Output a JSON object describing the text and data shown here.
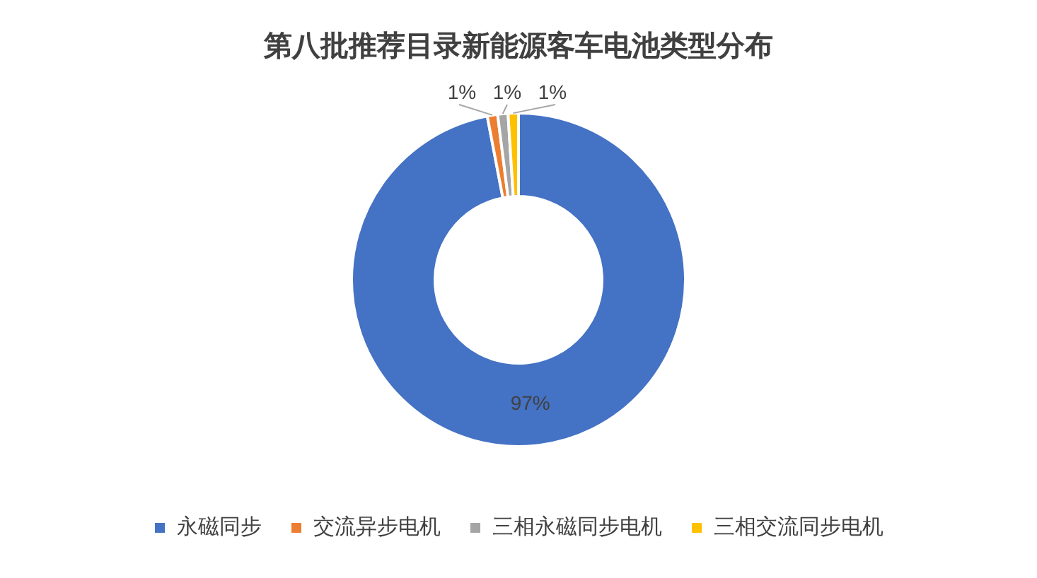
{
  "chart_data": {
    "type": "donut",
    "title": "第八批推荐目录新能源客车电池类型分布",
    "categories": [
      "永磁同步",
      "交流异步电机",
      "三相永磁同步电机",
      "三相交流同步电机"
    ],
    "values": [
      97,
      1,
      1,
      1
    ],
    "colors": [
      "#4472c4",
      "#ed7d31",
      "#a5a5a5",
      "#ffc000"
    ],
    "value_labels": [
      "97%",
      "1%",
      "1%",
      "1%"
    ],
    "legend": "bottom"
  }
}
